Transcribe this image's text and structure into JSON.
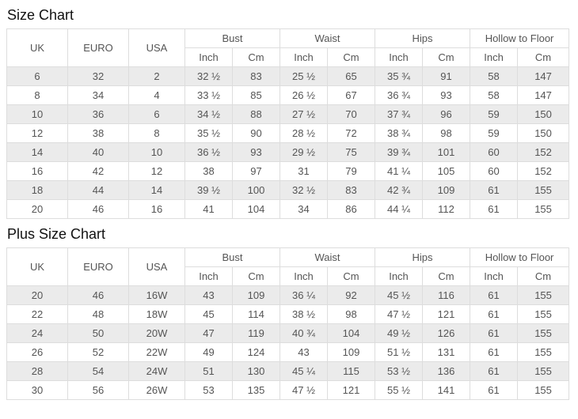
{
  "titles": {
    "size_chart": "Size Chart",
    "plus_size_chart": "Plus Size Chart"
  },
  "header": {
    "uk": "UK",
    "euro": "EURO",
    "usa": "USA",
    "bust": "Bust",
    "waist": "Waist",
    "hips": "Hips",
    "hollow_to_floor": "Hollow to Floor",
    "inch": "Inch",
    "cm": "Cm"
  },
  "colors": {
    "stripe_row": "#ebebeb",
    "alt_row": "#ffffff",
    "border": "#dddddd",
    "cell_text": "#555555",
    "title_text": "#111111"
  },
  "chart_data": [
    {
      "type": "table",
      "title": "Size Chart",
      "column_groups": [
        "UK",
        "EURO",
        "USA",
        "Bust",
        "Waist",
        "Hips",
        "Hollow to Floor"
      ],
      "sub_columns": [
        "Inch",
        "Cm"
      ],
      "columns": [
        "UK",
        "EURO",
        "USA",
        "Bust Inch",
        "Bust Cm",
        "Waist Inch",
        "Waist Cm",
        "Hips Inch",
        "Hips Cm",
        "Hollow to Floor Inch",
        "Hollow to Floor Cm"
      ],
      "rows": [
        [
          "6",
          "32",
          "2",
          "32 ½",
          "83",
          "25 ½",
          "65",
          "35 ¾",
          "91",
          "58",
          "147"
        ],
        [
          "8",
          "34",
          "4",
          "33 ½",
          "85",
          "26 ½",
          "67",
          "36 ¾",
          "93",
          "58",
          "147"
        ],
        [
          "10",
          "36",
          "6",
          "34 ½",
          "88",
          "27 ½",
          "70",
          "37 ¾",
          "96",
          "59",
          "150"
        ],
        [
          "12",
          "38",
          "8",
          "35 ½",
          "90",
          "28 ½",
          "72",
          "38 ¾",
          "98",
          "59",
          "150"
        ],
        [
          "14",
          "40",
          "10",
          "36 ½",
          "93",
          "29 ½",
          "75",
          "39 ¾",
          "101",
          "60",
          "152"
        ],
        [
          "16",
          "42",
          "12",
          "38",
          "97",
          "31",
          "79",
          "41 ¼",
          "105",
          "60",
          "152"
        ],
        [
          "18",
          "44",
          "14",
          "39 ½",
          "100",
          "32 ½",
          "83",
          "42 ¾",
          "109",
          "61",
          "155"
        ],
        [
          "20",
          "46",
          "16",
          "41",
          "104",
          "34",
          "86",
          "44 ¼",
          "112",
          "61",
          "155"
        ]
      ]
    },
    {
      "type": "table",
      "title": "Plus Size Chart",
      "column_groups": [
        "UK",
        "EURO",
        "USA",
        "Bust",
        "Waist",
        "Hips",
        "Hollow to Floor"
      ],
      "sub_columns": [
        "Inch",
        "Cm"
      ],
      "columns": [
        "UK",
        "EURO",
        "USA",
        "Bust Inch",
        "Bust Cm",
        "Waist Inch",
        "Waist Cm",
        "Hips Inch",
        "Hips Cm",
        "Hollow to Floor Inch",
        "Hollow to Floor Cm"
      ],
      "rows": [
        [
          "20",
          "46",
          "16W",
          "43",
          "109",
          "36 ¼",
          "92",
          "45 ½",
          "116",
          "61",
          "155"
        ],
        [
          "22",
          "48",
          "18W",
          "45",
          "114",
          "38 ½",
          "98",
          "47 ½",
          "121",
          "61",
          "155"
        ],
        [
          "24",
          "50",
          "20W",
          "47",
          "119",
          "40 ¾",
          "104",
          "49 ½",
          "126",
          "61",
          "155"
        ],
        [
          "26",
          "52",
          "22W",
          "49",
          "124",
          "43",
          "109",
          "51 ½",
          "131",
          "61",
          "155"
        ],
        [
          "28",
          "54",
          "24W",
          "51",
          "130",
          "45 ¼",
          "115",
          "53 ½",
          "136",
          "61",
          "155"
        ],
        [
          "30",
          "56",
          "26W",
          "53",
          "135",
          "47 ½",
          "121",
          "55 ½",
          "141",
          "61",
          "155"
        ]
      ]
    }
  ]
}
